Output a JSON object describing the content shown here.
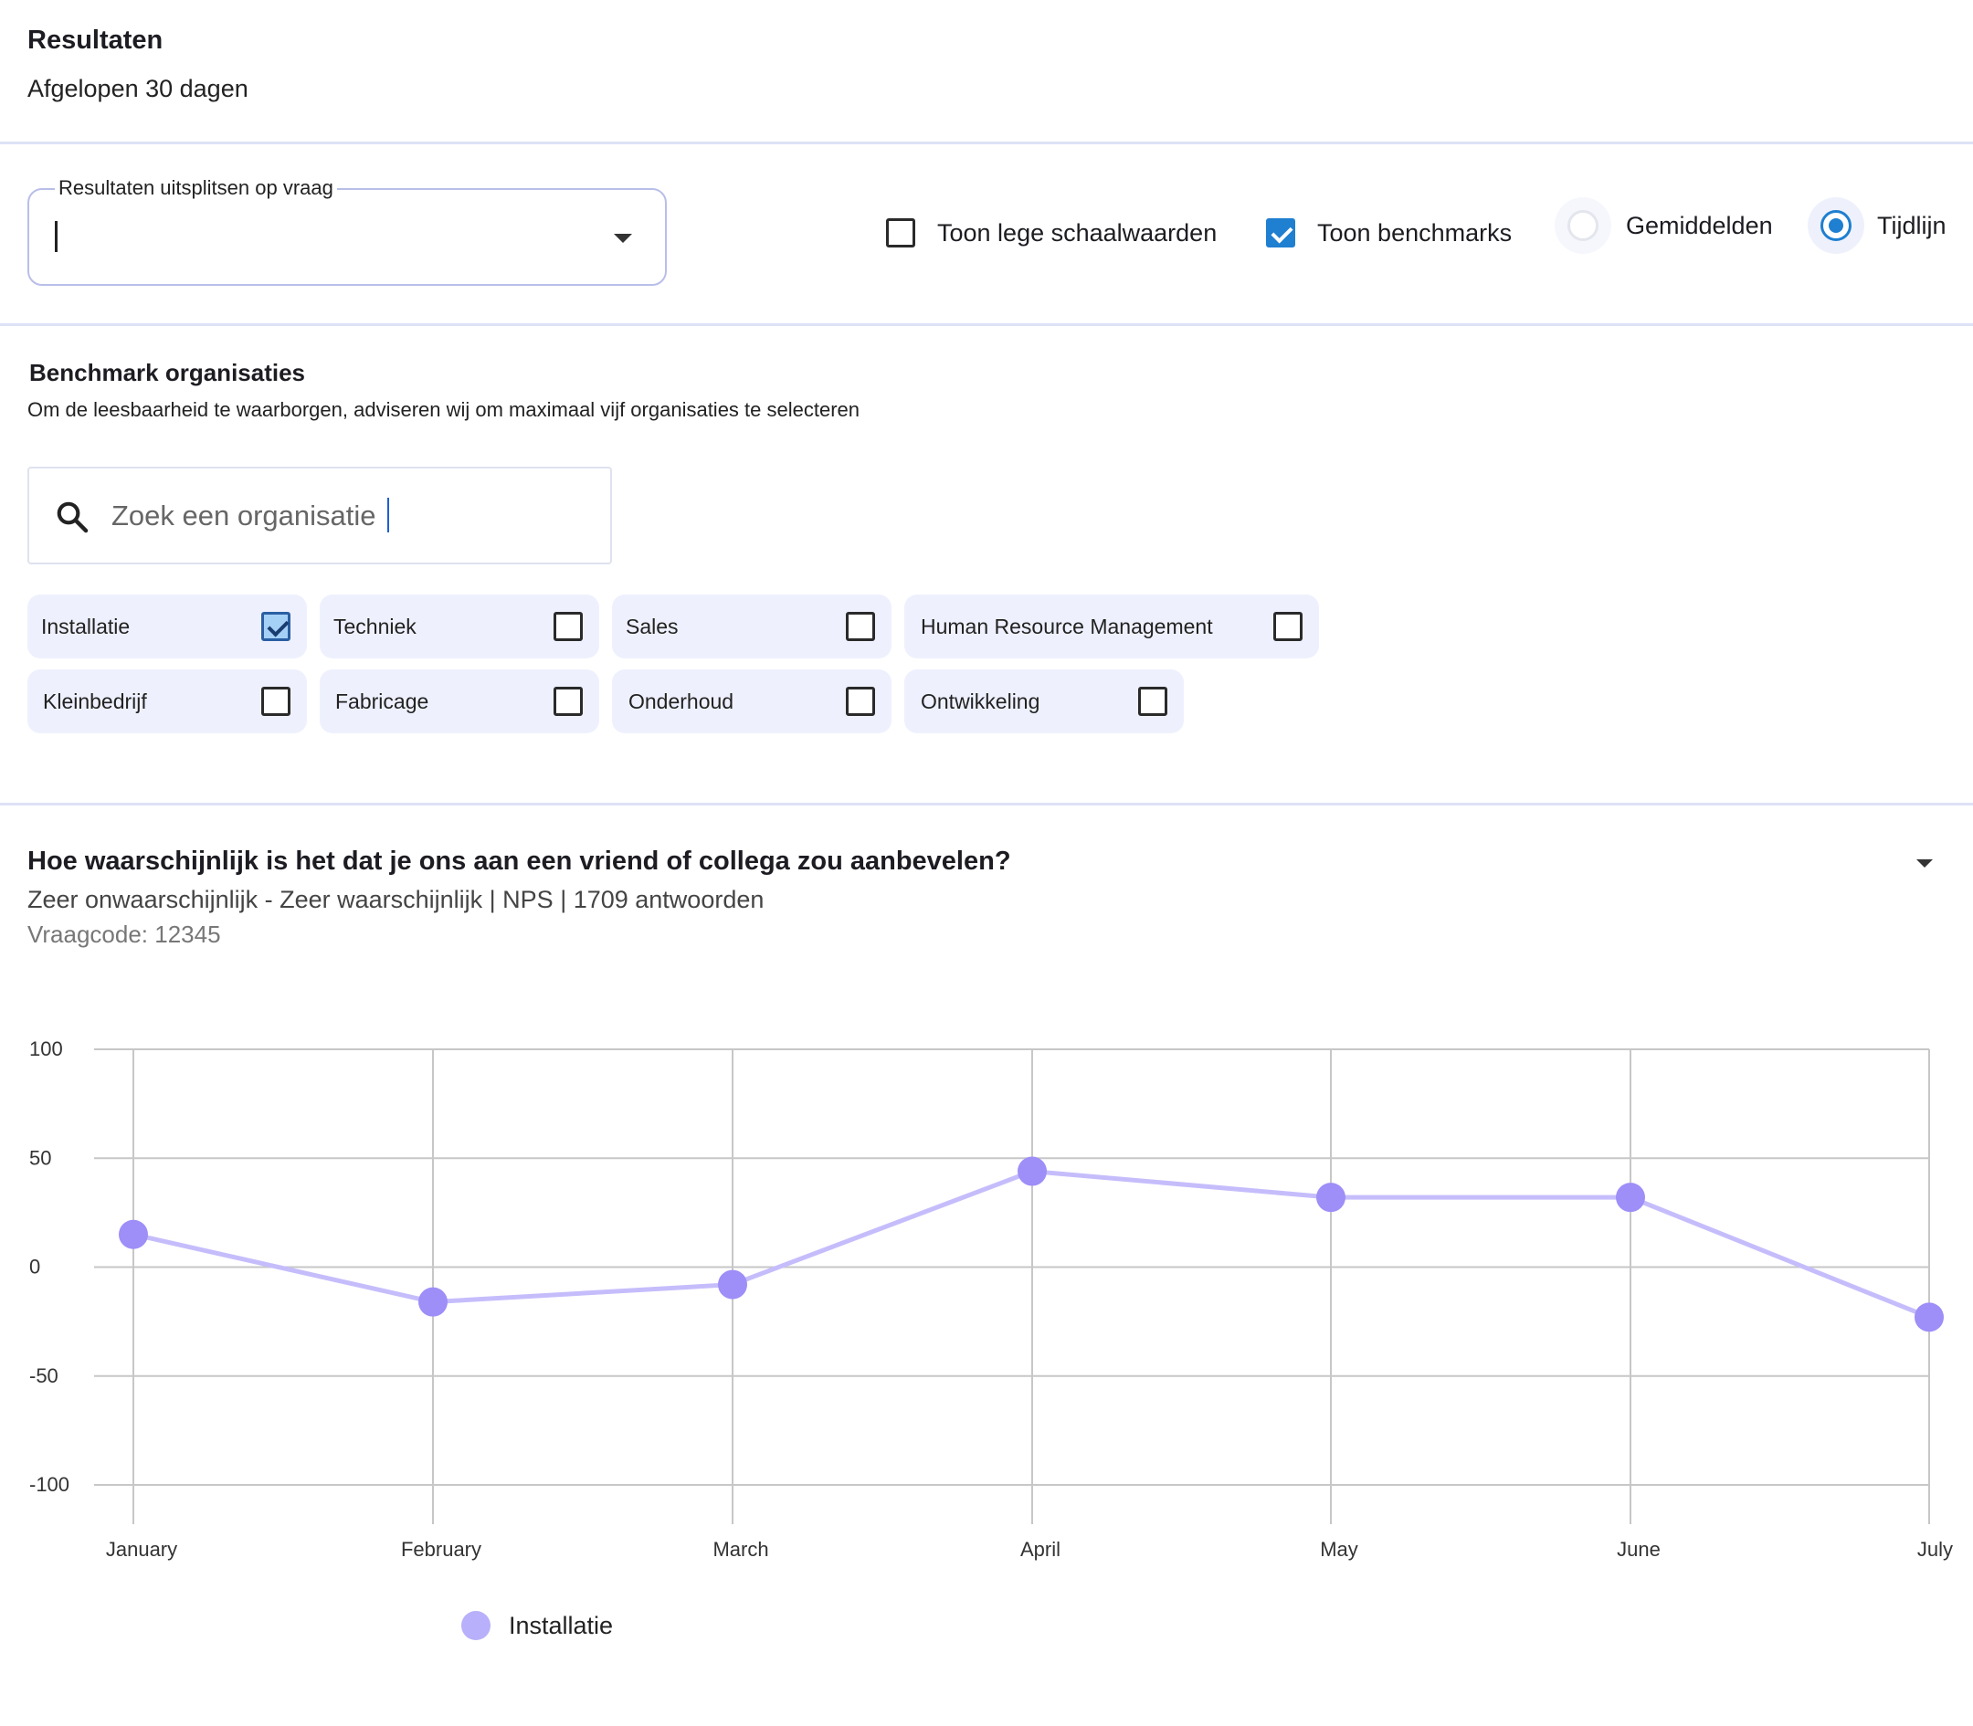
{
  "header": {
    "title": "Resultaten",
    "subtitle": "Afgelopen 30 dagen"
  },
  "controls": {
    "split_label": "Resultaten uitsplitsen op vraag",
    "split_value": "",
    "options": [
      {
        "label": "Toon lege schaalwaarden",
        "type": "checkbox",
        "checked": false
      },
      {
        "label": "Toon benchmarks",
        "type": "checkbox",
        "checked": true
      },
      {
        "label": "Gemiddelden",
        "type": "radio",
        "checked": false
      },
      {
        "label": "Tijdlijn",
        "type": "radio",
        "checked": true
      }
    ]
  },
  "benchmark": {
    "title": "Benchmark organisaties",
    "description": "Om de leesbaarheid te waarborgen, adviseren wij om maximaal vijf organisaties te selecteren",
    "search_placeholder": "Zoek een organisatie",
    "organisations": [
      {
        "label": "Installatie",
        "checked": true
      },
      {
        "label": "Techniek",
        "checked": false
      },
      {
        "label": "Sales",
        "checked": false
      },
      {
        "label": "Human Resource Management",
        "checked": false
      },
      {
        "label": "Kleinbedrijf",
        "checked": false
      },
      {
        "label": "Fabricage",
        "checked": false
      },
      {
        "label": "Onderhoud",
        "checked": false
      },
      {
        "label": "Ontwikkeling",
        "checked": false
      }
    ]
  },
  "question": {
    "title": "Hoe waarschijnlijk is het dat je ons aan een vriend of collega zou aanbevelen?",
    "meta": "Zeer onwaarschijnlijk - Zeer waarschijnlijk | NPS | 1709 antwoorden",
    "code": "Vraagcode: 12345"
  },
  "chart_data": {
    "type": "line",
    "categories": [
      "January",
      "February",
      "March",
      "April",
      "May",
      "June",
      "July"
    ],
    "series": [
      {
        "name": "Installatie",
        "values": [
          15,
          -16,
          -8,
          44,
          32,
          32,
          -23
        ],
        "color": "#c5bdfb",
        "point_color": "#9d8ef8"
      }
    ],
    "ylim": [
      -100,
      100
    ],
    "yticks": [
      "100",
      "50",
      "0",
      "-50",
      "-100"
    ],
    "grid": true,
    "legend_position": "bottom-left",
    "xlabel": "",
    "ylabel": ""
  },
  "colors": {
    "accent": "#1f7fd0",
    "chip_bg": "#eef1fd",
    "divider": "#dde2f6"
  }
}
